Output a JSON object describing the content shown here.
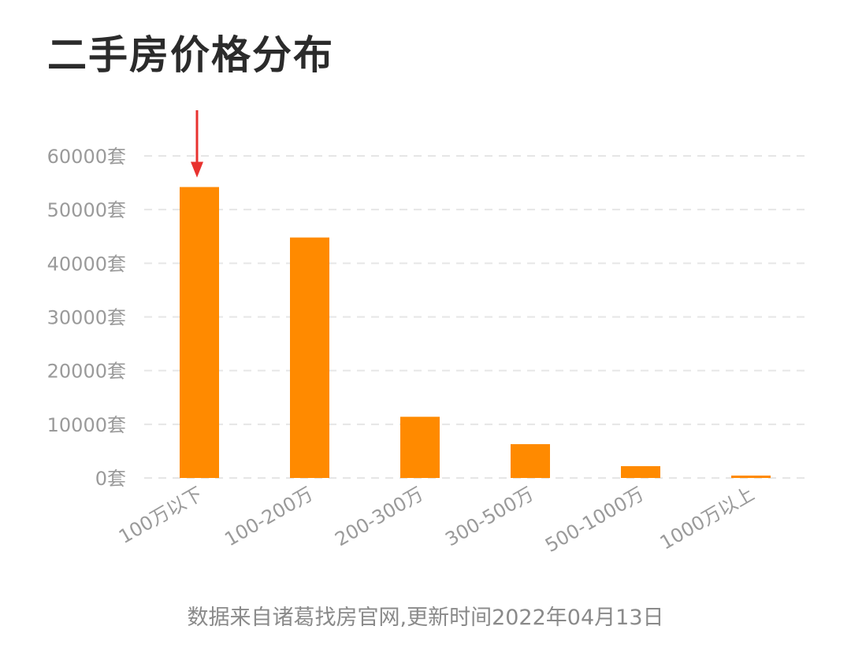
{
  "page": {
    "title": "二手房价格分布",
    "footer": "数据来自诸葛找房官网,更新时间2022年04月13日"
  },
  "colors": {
    "bar": "#FF8A00",
    "arrow": "#E8322F",
    "grid": "#E6E6E6",
    "tick_text": "#9A9A9A",
    "title_text": "#2B2B2B"
  },
  "chart_data": {
    "type": "bar",
    "categories": [
      "100万以下",
      "100-200万",
      "200-300万",
      "300-500万",
      "500-1000万",
      "1000万以上"
    ],
    "values": [
      54200,
      44800,
      11400,
      6300,
      2200,
      450
    ],
    "ylim": [
      0,
      60000
    ],
    "yticks": [
      "0套",
      "10000套",
      "20000套",
      "30000套",
      "40000套",
      "50000套",
      "60000套"
    ],
    "grid": true,
    "highlight_index": 0
  }
}
